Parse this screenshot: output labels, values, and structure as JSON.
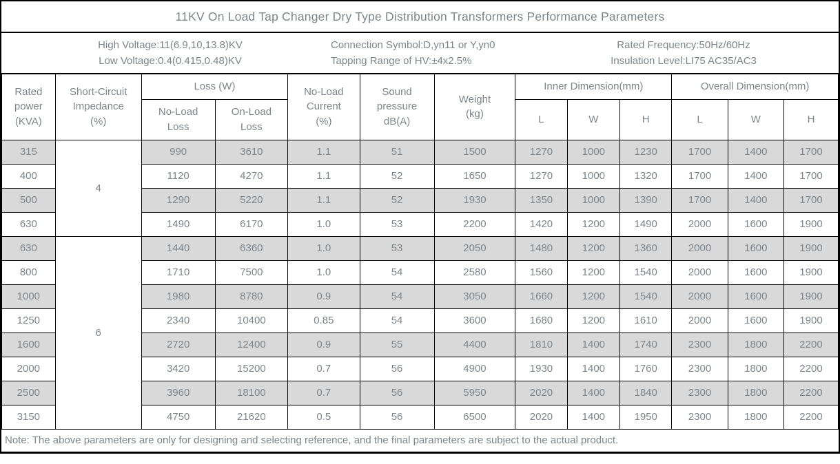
{
  "title": "11KV On Load Tap Changer Dry Type Distribution Transformers Performance Parameters",
  "info_bar": {
    "blocks": [
      {
        "lines": [
          "High Voltage:11(6.9,10,13.8)KV",
          "Low Voltage:0.4(0.415,0.48)KV"
        ]
      },
      {
        "lines": [
          "Connection Symbol:D,yn11 or Y,yn0",
          "Tapping Range of HV:±4x2.5%"
        ]
      },
      {
        "lines": [
          "Rated Frequency:50Hz/60Hz",
          "Insulation Level:LI75 AC35/AC3"
        ]
      }
    ]
  },
  "table": {
    "headers": {
      "rated_power": "Rated\npower\n(KVA)",
      "short_circuit_impedance": "Short-Circuit\nImpedance\n(%)",
      "loss_w": "Loss (W)",
      "no_load_loss": "No-Load\nLoss",
      "on_load_loss": "On-Load\nLoss",
      "no_load_current": "No-Load\nCurrent\n(%)",
      "sound_pressure": "Sound\npressure\ndB(A)",
      "weight": "Weight\n(kg)",
      "inner_dimension": "Inner Dimension(mm)",
      "overall_dimension": "Overall Dimension(mm)",
      "dim_l": "L",
      "dim_w": "W",
      "dim_h": "H"
    },
    "groups": [
      {
        "impedance": "4",
        "rows": [
          [
            "315",
            "990",
            "3610",
            "1.1",
            "51",
            "1500",
            "1270",
            "1000",
            "1230",
            "1700",
            "1400",
            "1700"
          ],
          [
            "400",
            "1120",
            "4270",
            "1.1",
            "52",
            "1650",
            "1270",
            "1000",
            "1320",
            "1700",
            "1400",
            "1700"
          ],
          [
            "500",
            "1290",
            "5220",
            "1.1",
            "52",
            "1930",
            "1350",
            "1000",
            "1390",
            "1700",
            "1400",
            "1700"
          ],
          [
            "630",
            "1490",
            "6170",
            "1.0",
            "53",
            "2200",
            "1420",
            "1200",
            "1490",
            "2000",
            "1600",
            "1900"
          ]
        ]
      },
      {
        "impedance": "6",
        "rows": [
          [
            "630",
            "1440",
            "6360",
            "1.0",
            "53",
            "2050",
            "1480",
            "1200",
            "1360",
            "2000",
            "1600",
            "1900"
          ],
          [
            "800",
            "1710",
            "7500",
            "1.0",
            "54",
            "2580",
            "1560",
            "1200",
            "1540",
            "2000",
            "1600",
            "1900"
          ],
          [
            "1000",
            "1980",
            "8780",
            "0.9",
            "54",
            "3050",
            "1660",
            "1200",
            "1540",
            "2000",
            "1600",
            "1900"
          ],
          [
            "1250",
            "2340",
            "10400",
            "0.85",
            "54",
            "3600",
            "1680",
            "1200",
            "1610",
            "2000",
            "1600",
            "1900"
          ],
          [
            "1600",
            "2720",
            "12400",
            "0.9",
            "55",
            "4400",
            "1810",
            "1400",
            "1740",
            "2300",
            "1800",
            "2200"
          ],
          [
            "2000",
            "3420",
            "15200",
            "0.7",
            "56",
            "4900",
            "1930",
            "1400",
            "1760",
            "2300",
            "1800",
            "2200"
          ],
          [
            "2500",
            "3960",
            "18100",
            "0.7",
            "56",
            "5950",
            "2020",
            "1400",
            "1840",
            "2300",
            "1800",
            "2200"
          ],
          [
            "3150",
            "4750",
            "21620",
            "0.5",
            "56",
            "6500",
            "2020",
            "1400",
            "1950",
            "2300",
            "1800",
            "2200"
          ]
        ]
      }
    ]
  },
  "note": "Note: The above parameters are only for designing and selecting  reference, and the final parameters are subject to the actual product.",
  "colors": {
    "row_shading": "#d9d9d9",
    "text": "#7e858b",
    "border": "#000000",
    "background": "#ffffff"
  }
}
